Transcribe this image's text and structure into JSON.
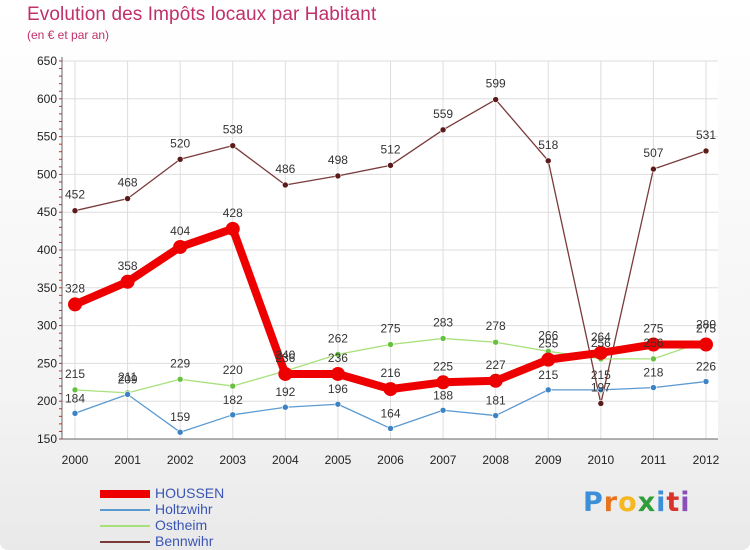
{
  "header": {
    "title": "Evolution des Impôts locaux par Habitant",
    "subtitle": "(en € et par an)"
  },
  "logo": {
    "letters": [
      "P",
      "r",
      "o",
      "x",
      "i",
      "t",
      "i"
    ],
    "colors": [
      "#3b8ed8",
      "#e8731c",
      "#f5b820",
      "#2f9e3a",
      "#3b8ed8",
      "#d8342c",
      "#8a4fb8"
    ]
  },
  "chart_data": {
    "type": "line",
    "title": "Evolution des Impôts locaux par Habitant",
    "subtitle": "(en € et par an)",
    "xlabel": "",
    "ylabel": "",
    "ylim": [
      150,
      650
    ],
    "yticks": [
      150,
      200,
      250,
      300,
      350,
      400,
      450,
      500,
      550,
      600,
      650
    ],
    "grid": true,
    "legend_position": "bottom-left",
    "categories": [
      "2000",
      "2001",
      "2002",
      "2003",
      "2004",
      "2005",
      "2006",
      "2007",
      "2008",
      "2009",
      "2010",
      "2011",
      "2012"
    ],
    "series": [
      {
        "name": "HOUSSEN",
        "color": "#ee0000",
        "marker": "#ee0000",
        "values": [
          328,
          358,
          404,
          428,
          236,
          236,
          216,
          225,
          227,
          255,
          264,
          275,
          275
        ],
        "labels": [
          "328",
          "358",
          "404",
          "428",
          "236",
          "236",
          "216",
          "225",
          "227",
          "255",
          "264",
          "275",
          "275"
        ]
      },
      {
        "name": "Holtzwihr",
        "color": "#5b9ad0",
        "marker": "#3c82c4",
        "values": [
          184,
          209,
          159,
          182,
          192,
          196,
          164,
          188,
          181,
          215,
          215,
          218,
          226
        ],
        "labels": [
          "184",
          "209",
          "159",
          "182",
          "192",
          "196",
          "164",
          "188",
          "181",
          "215",
          "215",
          "218",
          "226"
        ]
      },
      {
        "name": "Ostheim",
        "color": "#a8e07a",
        "marker": "#68c040",
        "values": [
          215,
          211,
          229,
          220,
          240,
          262,
          275,
          283,
          278,
          266,
          256,
          256,
          280
        ],
        "labels": [
          "215",
          "211",
          "229",
          "220",
          "240",
          "262",
          "275",
          "283",
          "278",
          "266",
          "256",
          "256",
          "280"
        ]
      },
      {
        "name": "Bennwihr",
        "color": "#7a3a3a",
        "marker": "#5c1a1a",
        "values": [
          452,
          468,
          520,
          538,
          486,
          498,
          512,
          559,
          599,
          518,
          197,
          507,
          531
        ],
        "labels": [
          "452",
          "468",
          "520",
          "538",
          "486",
          "498",
          "512",
          "559",
          "599",
          "518",
          "197",
          "507",
          "531"
        ]
      }
    ]
  }
}
